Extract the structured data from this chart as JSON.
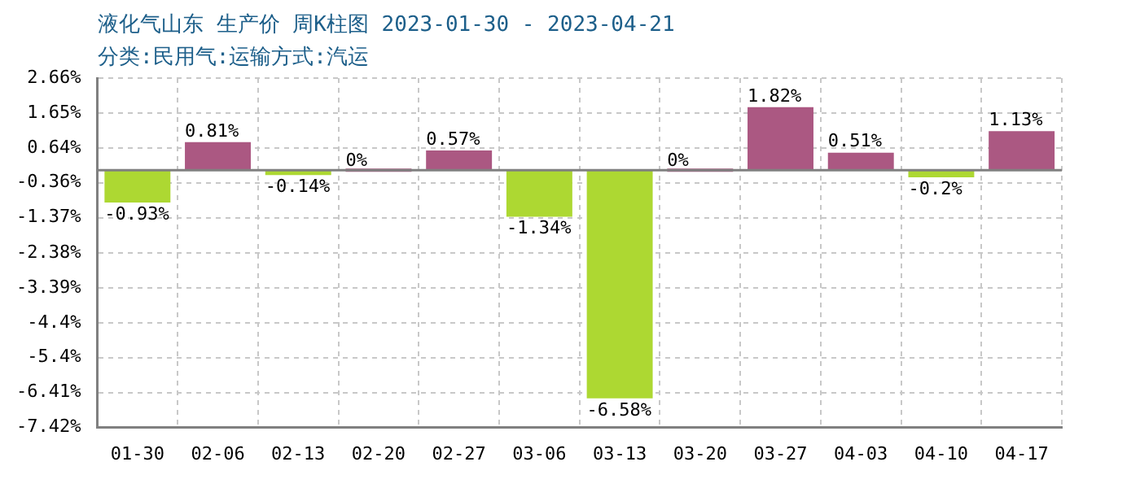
{
  "chart_data": {
    "type": "bar",
    "title": "液化气山东 生产价 周K柱图 2023-01-30 - 2023-04-21",
    "subtitle": "分类:民用气:运输方式:汽运",
    "categories": [
      "01-30",
      "02-06",
      "02-13",
      "02-20",
      "02-27",
      "03-06",
      "03-13",
      "03-20",
      "03-27",
      "04-03",
      "04-10",
      "04-17"
    ],
    "values": [
      -0.93,
      0.81,
      -0.14,
      0,
      0.57,
      -1.34,
      -6.58,
      0,
      1.82,
      0.51,
      -0.2,
      1.13
    ],
    "colors": [
      "#add832",
      "#ab5882",
      "#add832",
      "#ab5882",
      "#ab5882",
      "#add832",
      "#add832",
      "#ab5882",
      "#ab5882",
      "#ab5882",
      "#add832",
      "#ab5882"
    ],
    "value_labels": [
      "-0.93%",
      "0.81%",
      "-0.14%",
      "0%",
      "0.57%",
      "-1.34%",
      "-6.58%",
      "0%",
      "1.82%",
      "0.51%",
      "-0.2%",
      "1.13%"
    ],
    "ylim": [
      -7.42,
      2.66
    ],
    "yticks": [
      {
        "value": 2.66,
        "label": "2.66%"
      },
      {
        "value": 1.65,
        "label": "1.65%"
      },
      {
        "value": 0.64,
        "label": "0.64%"
      },
      {
        "value": -0.36,
        "label": "-0.36%"
      },
      {
        "value": -1.37,
        "label": "-1.37%"
      },
      {
        "value": -2.38,
        "label": "-2.38%"
      },
      {
        "value": -3.39,
        "label": "-3.39%"
      },
      {
        "value": -4.4,
        "label": "-4.4%"
      },
      {
        "value": -5.4,
        "label": "-5.4%"
      },
      {
        "value": -6.41,
        "label": "-6.41%"
      },
      {
        "value": -7.42,
        "label": "-7.42%"
      }
    ],
    "ref_lines": [
      {
        "axis": "y",
        "value": 0,
        "color": "#808080"
      }
    ],
    "grid": true,
    "legend": false
  }
}
